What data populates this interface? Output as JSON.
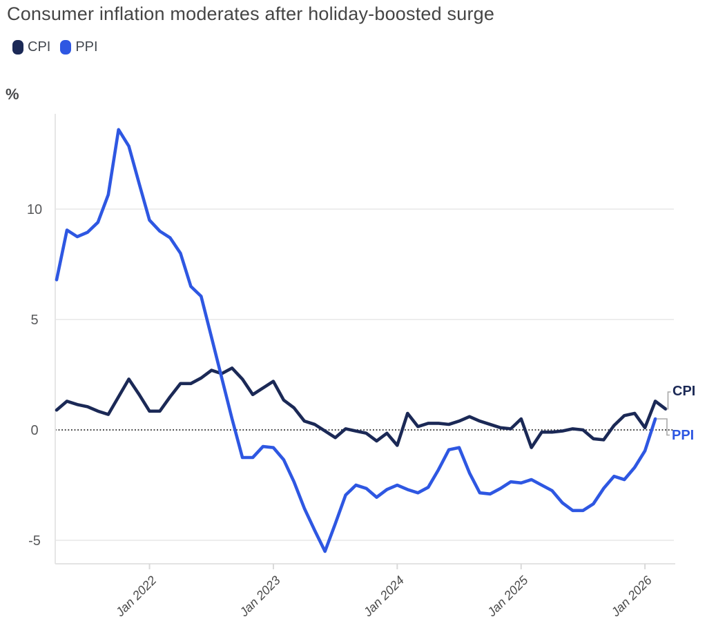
{
  "chart_data": {
    "type": "line",
    "title": "Consumer inflation moderates after holiday-boosted surge",
    "unit_label": "%",
    "x_start": "2021-04",
    "x_freq": "monthly",
    "x_tick_labels": [
      "Jan 2022",
      "Jan 2023",
      "Jan 2024",
      "Jan 2025",
      "Jan 2026"
    ],
    "x_tick_month_indices": [
      9,
      21,
      33,
      45,
      57
    ],
    "y_ticks": [
      10,
      5,
      0,
      -5
    ],
    "ylim": [
      -6.2,
      14.3
    ],
    "grid": "horizontal",
    "zero_line": "dotted",
    "legend_position": "top-left",
    "series": [
      {
        "name": "CPI",
        "end_label": "CPI",
        "color": "#1b2956",
        "values": [
          0.9,
          1.3,
          1.15,
          1.05,
          0.85,
          0.7,
          1.5,
          2.3,
          1.6,
          0.85,
          0.85,
          1.5,
          2.1,
          2.1,
          2.35,
          2.7,
          2.55,
          2.8,
          2.3,
          1.6,
          1.9,
          2.2,
          1.35,
          1.0,
          0.4,
          0.25,
          -0.05,
          -0.35,
          0.05,
          -0.05,
          -0.15,
          -0.5,
          -0.15,
          -0.7,
          0.75,
          0.15,
          0.3,
          0.3,
          0.25,
          0.4,
          0.6,
          0.4,
          0.25,
          0.1,
          0.05,
          0.5,
          -0.8,
          -0.1,
          -0.1,
          -0.05,
          0.05,
          0.0,
          -0.4,
          -0.45,
          0.2,
          0.65,
          0.75,
          0.1,
          1.3,
          0.95
        ]
      },
      {
        "name": "PPI",
        "end_label": "PPI",
        "color": "#2e57e2",
        "values": [
          6.8,
          9.05,
          8.75,
          8.95,
          9.4,
          10.65,
          13.6,
          12.85,
          11.15,
          9.5,
          9.0,
          8.7,
          8.0,
          6.5,
          6.05,
          4.2,
          2.35,
          0.5,
          -1.25,
          -1.25,
          -0.75,
          -0.8,
          -1.35,
          -2.35,
          -3.55,
          -4.55,
          -5.5,
          -4.25,
          -2.95,
          -2.5,
          -2.65,
          -3.05,
          -2.7,
          -2.5,
          -2.7,
          -2.85,
          -2.6,
          -1.8,
          -0.9,
          -0.8,
          -1.95,
          -2.85,
          -2.9,
          -2.65,
          -2.35,
          -2.4,
          -2.25,
          -2.5,
          -2.75,
          -3.3,
          -3.65,
          -3.65,
          -3.35,
          -2.65,
          -2.1,
          -2.25,
          -1.7,
          -0.95,
          0.5
        ]
      }
    ]
  }
}
